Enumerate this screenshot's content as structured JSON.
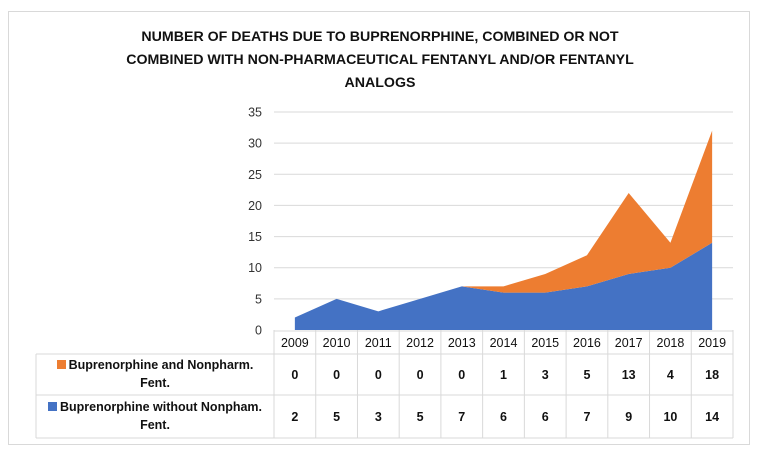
{
  "chart_data": {
    "type": "area",
    "stacked": true,
    "title": "NUMBER OF DEATHS DUE TO BUPRENORPHINE, COMBINED OR NOT COMBINED WITH NON-PHARMACEUTICAL FENTANYL AND/OR FENTANYL ANALOGS",
    "title_lines": [
      "NUMBER OF DEATHS DUE TO BUPRENORPHINE, COMBINED OR NOT",
      "COMBINED WITH NON-PHARMACEUTICAL FENTANYL AND/OR FENTANYL",
      "ANALOGS"
    ],
    "xlabel": "",
    "ylabel": "",
    "ylim": [
      0,
      35
    ],
    "yticks": [
      0,
      5,
      10,
      15,
      20,
      25,
      30,
      35
    ],
    "grid": true,
    "categories": [
      "2009",
      "2010",
      "2011",
      "2012",
      "2013",
      "2014",
      "2015",
      "2016",
      "2017",
      "2018",
      "2019"
    ],
    "series": [
      {
        "name": "Buprenorphine without Nonpham. Fent.",
        "label_line1": "Buprenorphine without Nonpham.",
        "label_line2": "Fent.",
        "color": "#4472C4",
        "values": [
          2,
          5,
          3,
          5,
          7,
          6,
          6,
          7,
          9,
          10,
          14
        ]
      },
      {
        "name": "Buprenorphine and Nonpharm. Fent.",
        "label_line1": "Buprenorphine and Nonpharm.",
        "label_line2": "Fent.",
        "color": "#ED7D31",
        "values": [
          0,
          0,
          0,
          0,
          0,
          1,
          3,
          5,
          13,
          4,
          18
        ]
      }
    ],
    "legend": "data-table"
  }
}
